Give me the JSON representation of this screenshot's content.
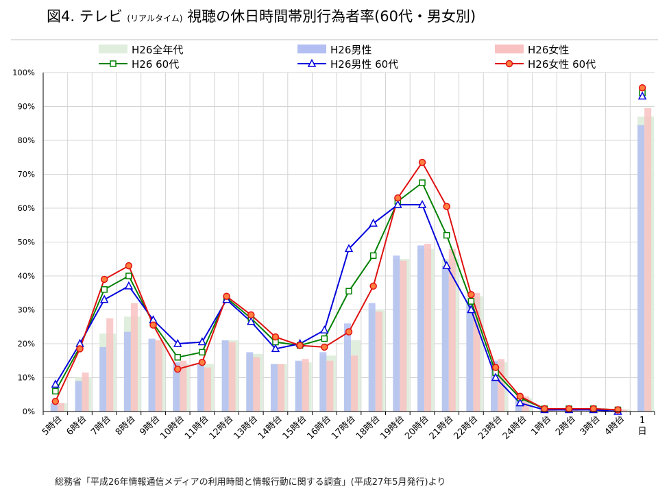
{
  "title": {
    "main_a": "図4. テレビ",
    "main_sub": "(リアルタイム)",
    "main_b": "視聴の休日時間帯別行為者率(60代・男女別)"
  },
  "source": "総務省「平成26年情報通信メディアの利用時間と情報行動に関する調査」(平成27年5月発行)より",
  "chart_data": {
    "type": "bar",
    "categories": [
      "5時台",
      "6時台",
      "7時台",
      "8時台",
      "9時台",
      "10時台",
      "11時台",
      "12時台",
      "13時台",
      "14時台",
      "15時台",
      "16時台",
      "17時台",
      "18時台",
      "19時台",
      "20時台",
      "21時台",
      "22時台",
      "23時台",
      "24時台",
      "1時台",
      "2時台",
      "3時台",
      "4時台",
      "1日"
    ],
    "y_ticks": [
      "0%",
      "10%",
      "20%",
      "30%",
      "40%",
      "50%",
      "60%",
      "70%",
      "80%",
      "90%",
      "100%"
    ],
    "ylim": [
      0,
      100
    ],
    "grid": true,
    "legend_position": "top",
    "series": [
      {
        "name": "H26全年代",
        "kind": "bar",
        "color": "#dfeedd",
        "values": [
          2.5,
          10,
          23,
          28,
          21,
          14,
          14,
          21,
          17,
          14,
          14.5,
          16.5,
          21,
          30,
          45,
          48,
          45,
          34,
          14.5,
          4,
          1,
          1,
          1,
          0.6,
          87
        ]
      },
      {
        "name": "H26男性",
        "kind": "bar",
        "color": "#b3bff2",
        "values": [
          2.5,
          9,
          19,
          23.5,
          21.5,
          14.5,
          14,
          21,
          17.5,
          14,
          15,
          17.5,
          26,
          32,
          46,
          49,
          43,
          32,
          15,
          4,
          1,
          1,
          1,
          0.6,
          84.5
        ]
      },
      {
        "name": "H26女性",
        "kind": "bar",
        "color": "#f8c2c2",
        "values": [
          2.5,
          11.5,
          27.5,
          32,
          21,
          15,
          13,
          20.5,
          16,
          14,
          15.5,
          15,
          16.5,
          29.5,
          44.5,
          49.5,
          48,
          35,
          15.5,
          4.5,
          1,
          1,
          1,
          0.6,
          89.5
        ]
      },
      {
        "name": "H26 60代",
        "kind": "line",
        "color": "#008000",
        "marker": "square",
        "values": [
          6,
          19,
          36,
          40,
          26,
          16,
          17.5,
          33.5,
          27.5,
          20.5,
          19.5,
          21.5,
          35.5,
          46,
          62,
          67.5,
          52,
          32.5,
          11.5,
          4,
          0.8,
          0.8,
          0.8,
          0.5,
          94
        ]
      },
      {
        "name": "H26男性 60代",
        "kind": "line",
        "color": "#0000dd",
        "marker": "triangle",
        "values": [
          8,
          20,
          33,
          37,
          27,
          20,
          20.5,
          33,
          26.5,
          18.5,
          20,
          24,
          48,
          55.5,
          61,
          61,
          43,
          30,
          10,
          2.5,
          0.5,
          0.5,
          0.5,
          0,
          93
        ]
      },
      {
        "name": "H26女性 60代",
        "kind": "line",
        "color": "#e01010",
        "marker": "circle",
        "values": [
          3,
          18.5,
          39,
          43,
          25.5,
          12.5,
          14.5,
          34,
          28.5,
          22,
          19.5,
          19,
          23.5,
          37,
          63,
          73.5,
          60.5,
          34.5,
          13,
          4.5,
          0.8,
          0.8,
          0.8,
          0.5,
          95.5
        ]
      }
    ]
  }
}
